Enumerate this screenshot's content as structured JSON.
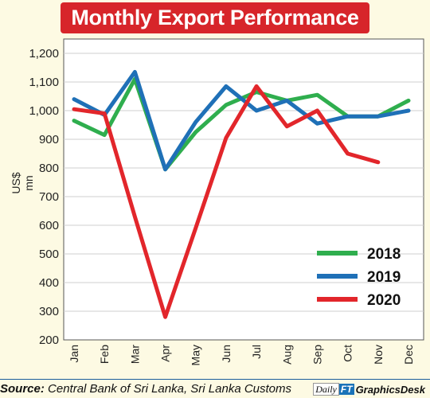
{
  "title": "Monthly Export Performance",
  "source_label": "Source:",
  "source_text": " Central Bank of Sri Lanka, Sri Lanka Customs",
  "brand": {
    "daily": "Daily",
    "ft": "FT",
    "name": "GraphicsDesk"
  },
  "chart_data": {
    "type": "line",
    "title": "Monthly Export Performance",
    "xlabel": "",
    "ylabel": "US$ mn",
    "ylim": [
      200,
      1200
    ],
    "yticks": [
      "200",
      "300",
      "400",
      "500",
      "600",
      "700",
      "800",
      "900",
      "1,000",
      "1,100",
      "1,200"
    ],
    "categories": [
      "Jan",
      "Feb",
      "Mar",
      "Apr",
      "May",
      "Jun",
      "Jul",
      "Aug",
      "Sep",
      "Oct",
      "Nov",
      "Dec"
    ],
    "grid": true,
    "legend": "bottom-right",
    "series": [
      {
        "name": "2018",
        "color": "#2fae4e",
        "values": [
          965,
          915,
          1110,
          795,
          925,
          1020,
          1065,
          1035,
          1055,
          980,
          980,
          1035
        ]
      },
      {
        "name": "2019",
        "color": "#1f70b7",
        "values": [
          1040,
          985,
          1135,
          795,
          960,
          1085,
          1000,
          1035,
          955,
          980,
          980,
          1000
        ]
      },
      {
        "name": "2020",
        "color": "#e2262b",
        "values": [
          1005,
          990,
          630,
          280,
          590,
          905,
          1085,
          945,
          1000,
          850,
          820,
          null
        ]
      }
    ]
  }
}
